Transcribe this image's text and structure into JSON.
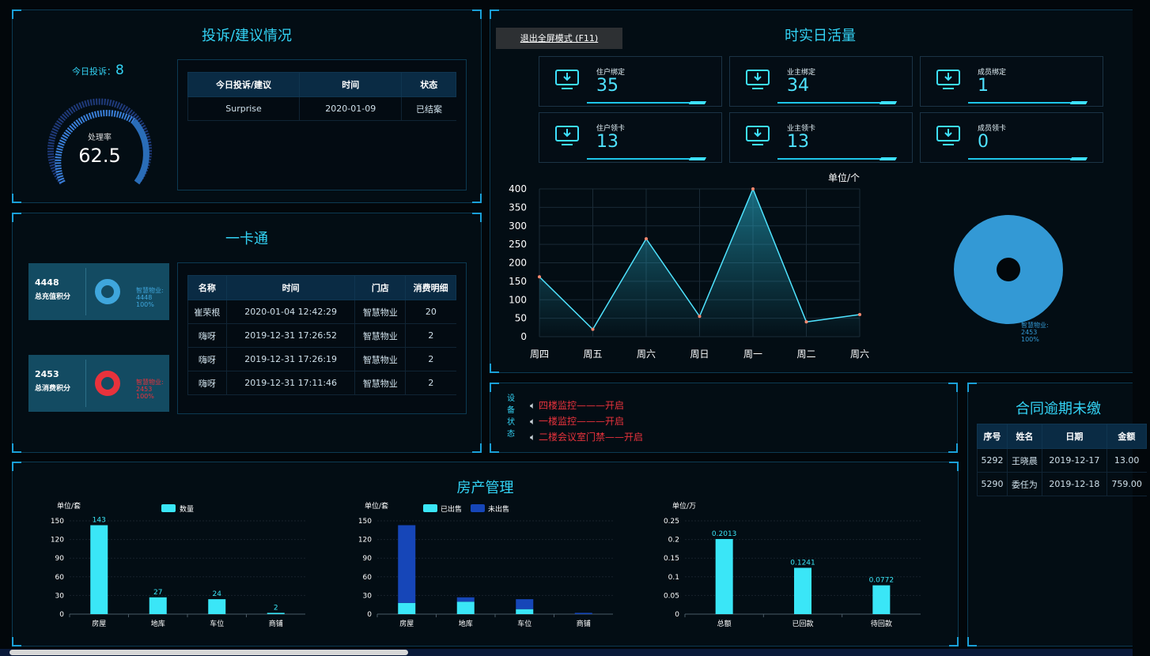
{
  "complaints": {
    "title": "投诉/建议情况",
    "today_label": "今日投诉：",
    "today_value": "8",
    "gauge_label": "处理率",
    "gauge_value": "62.5",
    "table": {
      "headers": [
        "今日投诉/建议",
        "时间",
        "状态"
      ],
      "rows": [
        [
          "Surprise",
          "2020-01-09",
          "已结案"
        ]
      ]
    }
  },
  "card": {
    "title": "一卡通",
    "recharge": {
      "value": "4448",
      "label": "总充值积分",
      "legend_name": "智慧物业:",
      "legend_value": "4448",
      "legend_pct": "100%"
    },
    "consume": {
      "value": "2453",
      "label": "总消费积分",
      "legend_name": "智慧物业:",
      "legend_value": "2453",
      "legend_pct": "100%"
    },
    "table": {
      "headers": [
        "名称",
        "时间",
        "门店",
        "消费明细"
      ],
      "rows": [
        [
          "崔荣根",
          "2020-01-04 12:42:29",
          "智慧物业",
          "20"
        ],
        [
          "嗨呀",
          "2019-12-31 17:26:52",
          "智慧物业",
          "2"
        ],
        [
          "嗨呀",
          "2019-12-31 17:26:19",
          "智慧物业",
          "2"
        ],
        [
          "嗨呀",
          "2019-12-31 17:11:46",
          "智慧物业",
          "2"
        ]
      ]
    }
  },
  "activity": {
    "title": "时实日活量",
    "exit_fullscreen": "退出全屏模式 (F11)",
    "stats": [
      {
        "label": "住户绑定",
        "value": "35",
        "icon": "download-monitor-icon"
      },
      {
        "label": "业主绑定",
        "value": "34",
        "icon": "download-monitor-icon"
      },
      {
        "label": "成员绑定",
        "value": "1",
        "icon": "download-monitor-icon"
      },
      {
        "label": "住户领卡",
        "value": "13",
        "icon": "download-monitor-icon"
      },
      {
        "label": "业主领卡",
        "value": "13",
        "icon": "download-monitor-icon"
      },
      {
        "label": "成员领卡",
        "value": "0",
        "icon": "download-monitor-icon"
      }
    ],
    "pie_legend": {
      "name": "智慧物业:",
      "value": "2453",
      "pct": "100%"
    }
  },
  "device": {
    "title_chars": [
      "设",
      "备",
      "状",
      "态"
    ],
    "items": [
      "四楼监控———开启",
      "一楼监控———开启",
      "二楼会议室门禁——开启"
    ]
  },
  "contract": {
    "title": "合同逾期未缴",
    "headers": [
      "序号",
      "姓名",
      "日期",
      "金额"
    ],
    "rows": [
      [
        "5292",
        "王晓晨",
        "2019-12-17",
        "13.00"
      ],
      [
        "5290",
        "委任为",
        "2019-12-18",
        "759.00"
      ]
    ]
  },
  "property": {
    "title": "房产管理"
  },
  "colors": {
    "accent": "#33d3f5",
    "bar": "#3ae6f7",
    "bar_dark": "#1646b8",
    "red": "#e8323c"
  },
  "chart_data": [
    {
      "type": "line",
      "title": "",
      "ylabel": "单位/个",
      "categories": [
        "周四",
        "周五",
        "周六",
        "周日",
        "周一",
        "周二",
        "周六"
      ],
      "values": [
        162,
        20,
        265,
        55,
        400,
        40,
        60
      ],
      "ylim": [
        0,
        400
      ],
      "yticks": [
        0,
        50,
        100,
        150,
        200,
        250,
        300,
        350,
        400
      ],
      "grid": true
    },
    {
      "type": "bar",
      "ylabel": "单位/套",
      "legend": [
        "数量"
      ],
      "categories": [
        "房屋",
        "地库",
        "车位",
        "商铺"
      ],
      "values": [
        143,
        27,
        24,
        2
      ],
      "ylim": [
        0,
        150
      ],
      "yticks": [
        0,
        30,
        60,
        90,
        120,
        150
      ]
    },
    {
      "type": "bar",
      "stacked": true,
      "ylabel": "单位/套",
      "categories": [
        "房屋",
        "地库",
        "车位",
        "商铺"
      ],
      "series": [
        {
          "name": "已出售",
          "values": [
            18,
            20,
            8,
            0
          ]
        },
        {
          "name": "未出售",
          "values": [
            125,
            7,
            16,
            2
          ]
        }
      ],
      "ylim": [
        0,
        150
      ],
      "yticks": [
        0,
        30,
        60,
        90,
        120,
        150
      ]
    },
    {
      "type": "bar",
      "ylabel": "单位/万",
      "categories": [
        "总额",
        "已回款",
        "待回款"
      ],
      "values": [
        0.2013,
        0.1241,
        0.0772
      ],
      "ylim": [
        0,
        0.25
      ],
      "yticks": [
        0,
        0.05,
        0.1,
        0.15,
        0.2,
        0.25
      ]
    }
  ]
}
